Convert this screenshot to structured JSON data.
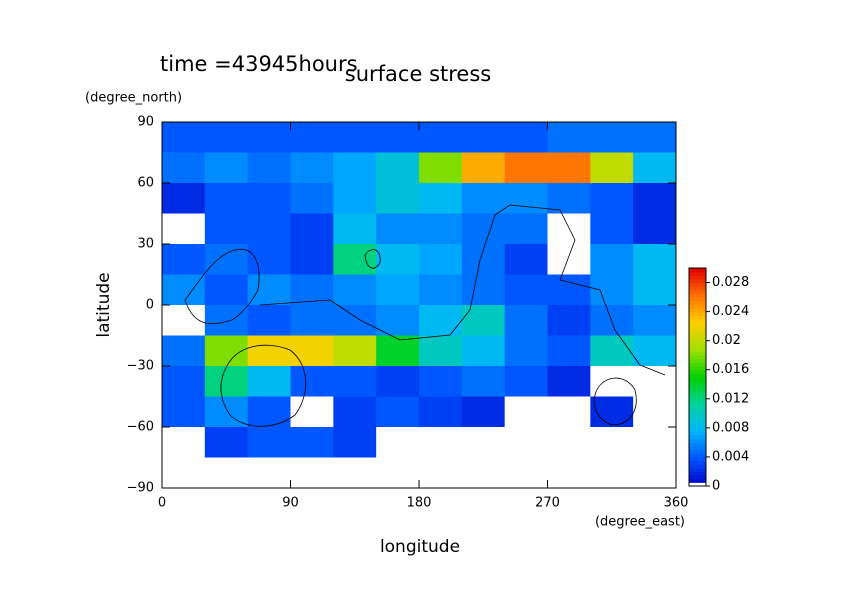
{
  "chart_data": {
    "type": "contour",
    "annotation": "time =43945hours",
    "title": "surface stress",
    "y_unit": "(degree_north)",
    "y_label": "latitude",
    "x_label": "longitude",
    "x_unit": "(degree_east)",
    "xlim": [
      0,
      360
    ],
    "xticks": [
      0,
      90,
      180,
      270,
      360
    ],
    "ylim": [
      -90,
      90
    ],
    "yticks": [
      {
        "value": -90,
        "label": "−90"
      },
      {
        "value": -60,
        "label": "−60"
      },
      {
        "value": -30,
        "label": "−30"
      },
      0,
      30,
      60,
      90
    ],
    "x": [
      15,
      45,
      75,
      105,
      135,
      165,
      195,
      225,
      255,
      285,
      315,
      345
    ],
    "y": [
      82.5,
      67.5,
      52.5,
      37.5,
      22.5,
      7.5,
      -7.5,
      -22.5,
      -37.5,
      -52.5,
      -67.5,
      -82.5
    ],
    "z": [
      [
        0.004,
        0.004,
        0.004,
        0.004,
        0.004,
        0.004,
        0.004,
        0.004,
        0.004,
        0.005,
        0.005,
        0.005
      ],
      [
        0.005,
        0.006,
        0.005,
        0.006,
        0.007,
        0.009,
        0.018,
        0.024,
        0.026,
        0.026,
        0.02,
        0.008
      ],
      [
        0.002,
        0.004,
        0.004,
        0.005,
        0.007,
        0.009,
        0.008,
        0.006,
        0.006,
        0.005,
        0.004,
        0.002
      ],
      [
        0,
        0.004,
        0.004,
        0.003,
        0.008,
        0.006,
        0.006,
        0.005,
        0.005,
        0,
        0.004,
        0.002
      ],
      [
        0.004,
        0.005,
        0.004,
        0.003,
        0.012,
        0.008,
        0.007,
        0.005,
        0.003,
        0,
        0.006,
        0.008
      ],
      [
        0.006,
        0.004,
        0.006,
        0.005,
        0.006,
        0.007,
        0.006,
        0.005,
        0.004,
        0.004,
        0.006,
        0.008
      ],
      [
        0,
        0.005,
        0.004,
        0.005,
        0.005,
        0.006,
        0.008,
        0.01,
        0.005,
        0.003,
        0.005,
        0.006
      ],
      [
        0.005,
        0.018,
        0.022,
        0.022,
        0.02,
        0.014,
        0.01,
        0.008,
        0.005,
        0.004,
        0.01,
        0.008
      ],
      [
        0.004,
        0.012,
        0.008,
        0.004,
        0.004,
        0.003,
        0.004,
        0.005,
        0.004,
        0.002,
        0,
        0
      ],
      [
        0.004,
        0.006,
        0.004,
        0,
        0.003,
        0.004,
        0.003,
        0.002,
        0,
        0,
        0.002,
        0
      ],
      [
        0,
        0.003,
        0.004,
        0.004,
        0.003,
        0,
        0,
        0,
        0,
        0,
        0,
        0
      ],
      [
        0,
        0,
        0,
        0,
        0,
        0,
        0,
        0,
        0,
        0,
        0,
        0
      ]
    ],
    "clim": [
      0,
      0.03
    ],
    "cticks": [
      0,
      0.004,
      0.008,
      0.012,
      0.016,
      0.02,
      0.024,
      0.028
    ],
    "colormap": [
      "#0000c8",
      "#0050ff",
      "#00b4ff",
      "#00d2a0",
      "#00d000",
      "#a0e000",
      "#ffd000",
      "#ff7000",
      "#e00000"
    ]
  }
}
